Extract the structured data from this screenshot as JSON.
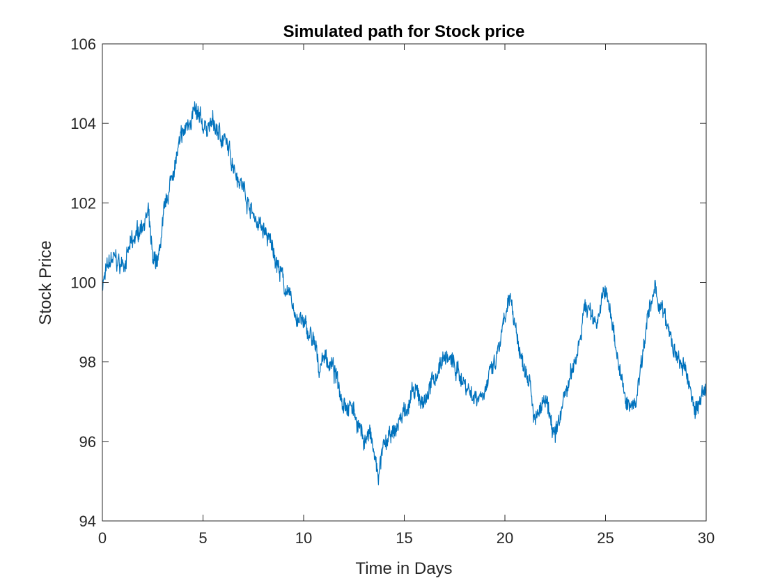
{
  "chart_data": {
    "type": "line",
    "title": "Simulated path for Stock price",
    "xlabel": "Time in Days",
    "ylabel": "Stock Price",
    "xlim": [
      0,
      30
    ],
    "ylim": [
      94,
      106
    ],
    "xticks": [
      0,
      5,
      10,
      15,
      20,
      25,
      30
    ],
    "yticks": [
      94,
      96,
      98,
      100,
      102,
      104,
      106
    ],
    "grid": false,
    "line_color": "#0072BD",
    "axis_color": "#262626",
    "series": [
      {
        "x": [
          0,
          0.5,
          1.0,
          1.5,
          2.0,
          2.3,
          2.5,
          2.8,
          3.0,
          3.5,
          4.0,
          4.5,
          5.0,
          5.5,
          6.0,
          6.5,
          7.0,
          7.5,
          8.0,
          8.5,
          9.0,
          9.5,
          10.0,
          10.5,
          10.8,
          11.0,
          11.5,
          12.0,
          12.5,
          13.0,
          13.3,
          13.7,
          14.0,
          14.5,
          15.0,
          15.5,
          16.0,
          16.5,
          17.0,
          17.5,
          18.0,
          18.5,
          19.0,
          19.5,
          20.0,
          20.3,
          20.8,
          21.2,
          21.5,
          22.0,
          22.5,
          23.0,
          23.5,
          24.0,
          24.5,
          25.0,
          25.5,
          26.0,
          26.5,
          27.0,
          27.5,
          28.0,
          28.5,
          29.0,
          29.5,
          30.0
        ],
        "values": [
          100.0,
          100.6,
          100.4,
          101.0,
          101.5,
          101.7,
          100.5,
          100.6,
          101.5,
          102.8,
          103.7,
          104.3,
          103.9,
          104.0,
          103.6,
          103.0,
          102.4,
          101.7,
          101.3,
          100.8,
          100.0,
          99.3,
          98.9,
          98.5,
          97.8,
          98.2,
          97.8,
          97.0,
          96.8,
          96.0,
          96.2,
          95.1,
          95.9,
          96.2,
          96.8,
          97.2,
          97.0,
          97.6,
          98.2,
          97.9,
          97.5,
          97.1,
          97.3,
          97.9,
          99.0,
          99.6,
          98.1,
          97.7,
          96.5,
          97.0,
          96.1,
          97.2,
          98.0,
          99.5,
          99.0,
          99.8,
          98.5,
          96.9,
          97.0,
          98.9,
          99.8,
          99.0,
          98.1,
          97.7,
          96.8,
          97.3
        ]
      }
    ]
  }
}
